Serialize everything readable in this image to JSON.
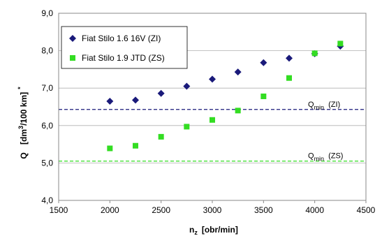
{
  "chart_data": {
    "type": "scatter",
    "xlabel": {
      "main": "n",
      "sub": "z",
      "rest": "[obr/min]"
    },
    "ylabel": {
      "main": "Q",
      "pre": "[dm",
      "sup": "3",
      "post": "/100 km]",
      "sup2": "*"
    },
    "xlim": [
      1500,
      4500
    ],
    "ylim": [
      4.0,
      9.0
    ],
    "xticks": [
      "1500",
      "2000",
      "2500",
      "3000",
      "3500",
      "4000",
      "4500"
    ],
    "yticks": [
      "4,0",
      "5,0",
      "6,0",
      "7,0",
      "8,0",
      "9,0"
    ],
    "grid": "horizontal",
    "legend_position": "top-left",
    "series": [
      {
        "name": "Fiat Stilo 1.6 16V (ZI)",
        "marker": "diamond",
        "color": "#1a1a7a",
        "x": [
          2000,
          2250,
          2500,
          2750,
          3000,
          3250,
          3500,
          3750,
          4000,
          4250
        ],
        "y": [
          6.65,
          6.68,
          6.86,
          7.05,
          7.24,
          7.43,
          7.68,
          7.8,
          7.92,
          8.12
        ]
      },
      {
        "name": "Fiat Stilo 1.9 JTD (ZS)",
        "marker": "square",
        "color": "#33dd22",
        "x": [
          2000,
          2250,
          2500,
          2750,
          3000,
          3250,
          3500,
          3750,
          4000,
          4250
        ],
        "y": [
          5.39,
          5.46,
          5.7,
          5.97,
          6.15,
          6.4,
          6.78,
          7.27,
          7.93,
          8.19
        ]
      }
    ],
    "reference_lines": [
      {
        "label_main": "Q",
        "label_sub": "min",
        "label_tag": "(ZI)",
        "y": 6.43,
        "color": "#1a1a7a"
      },
      {
        "label_main": "Q",
        "label_sub": "min",
        "label_tag": "(ZS)",
        "y": 5.05,
        "color": "#33dd22"
      }
    ]
  }
}
